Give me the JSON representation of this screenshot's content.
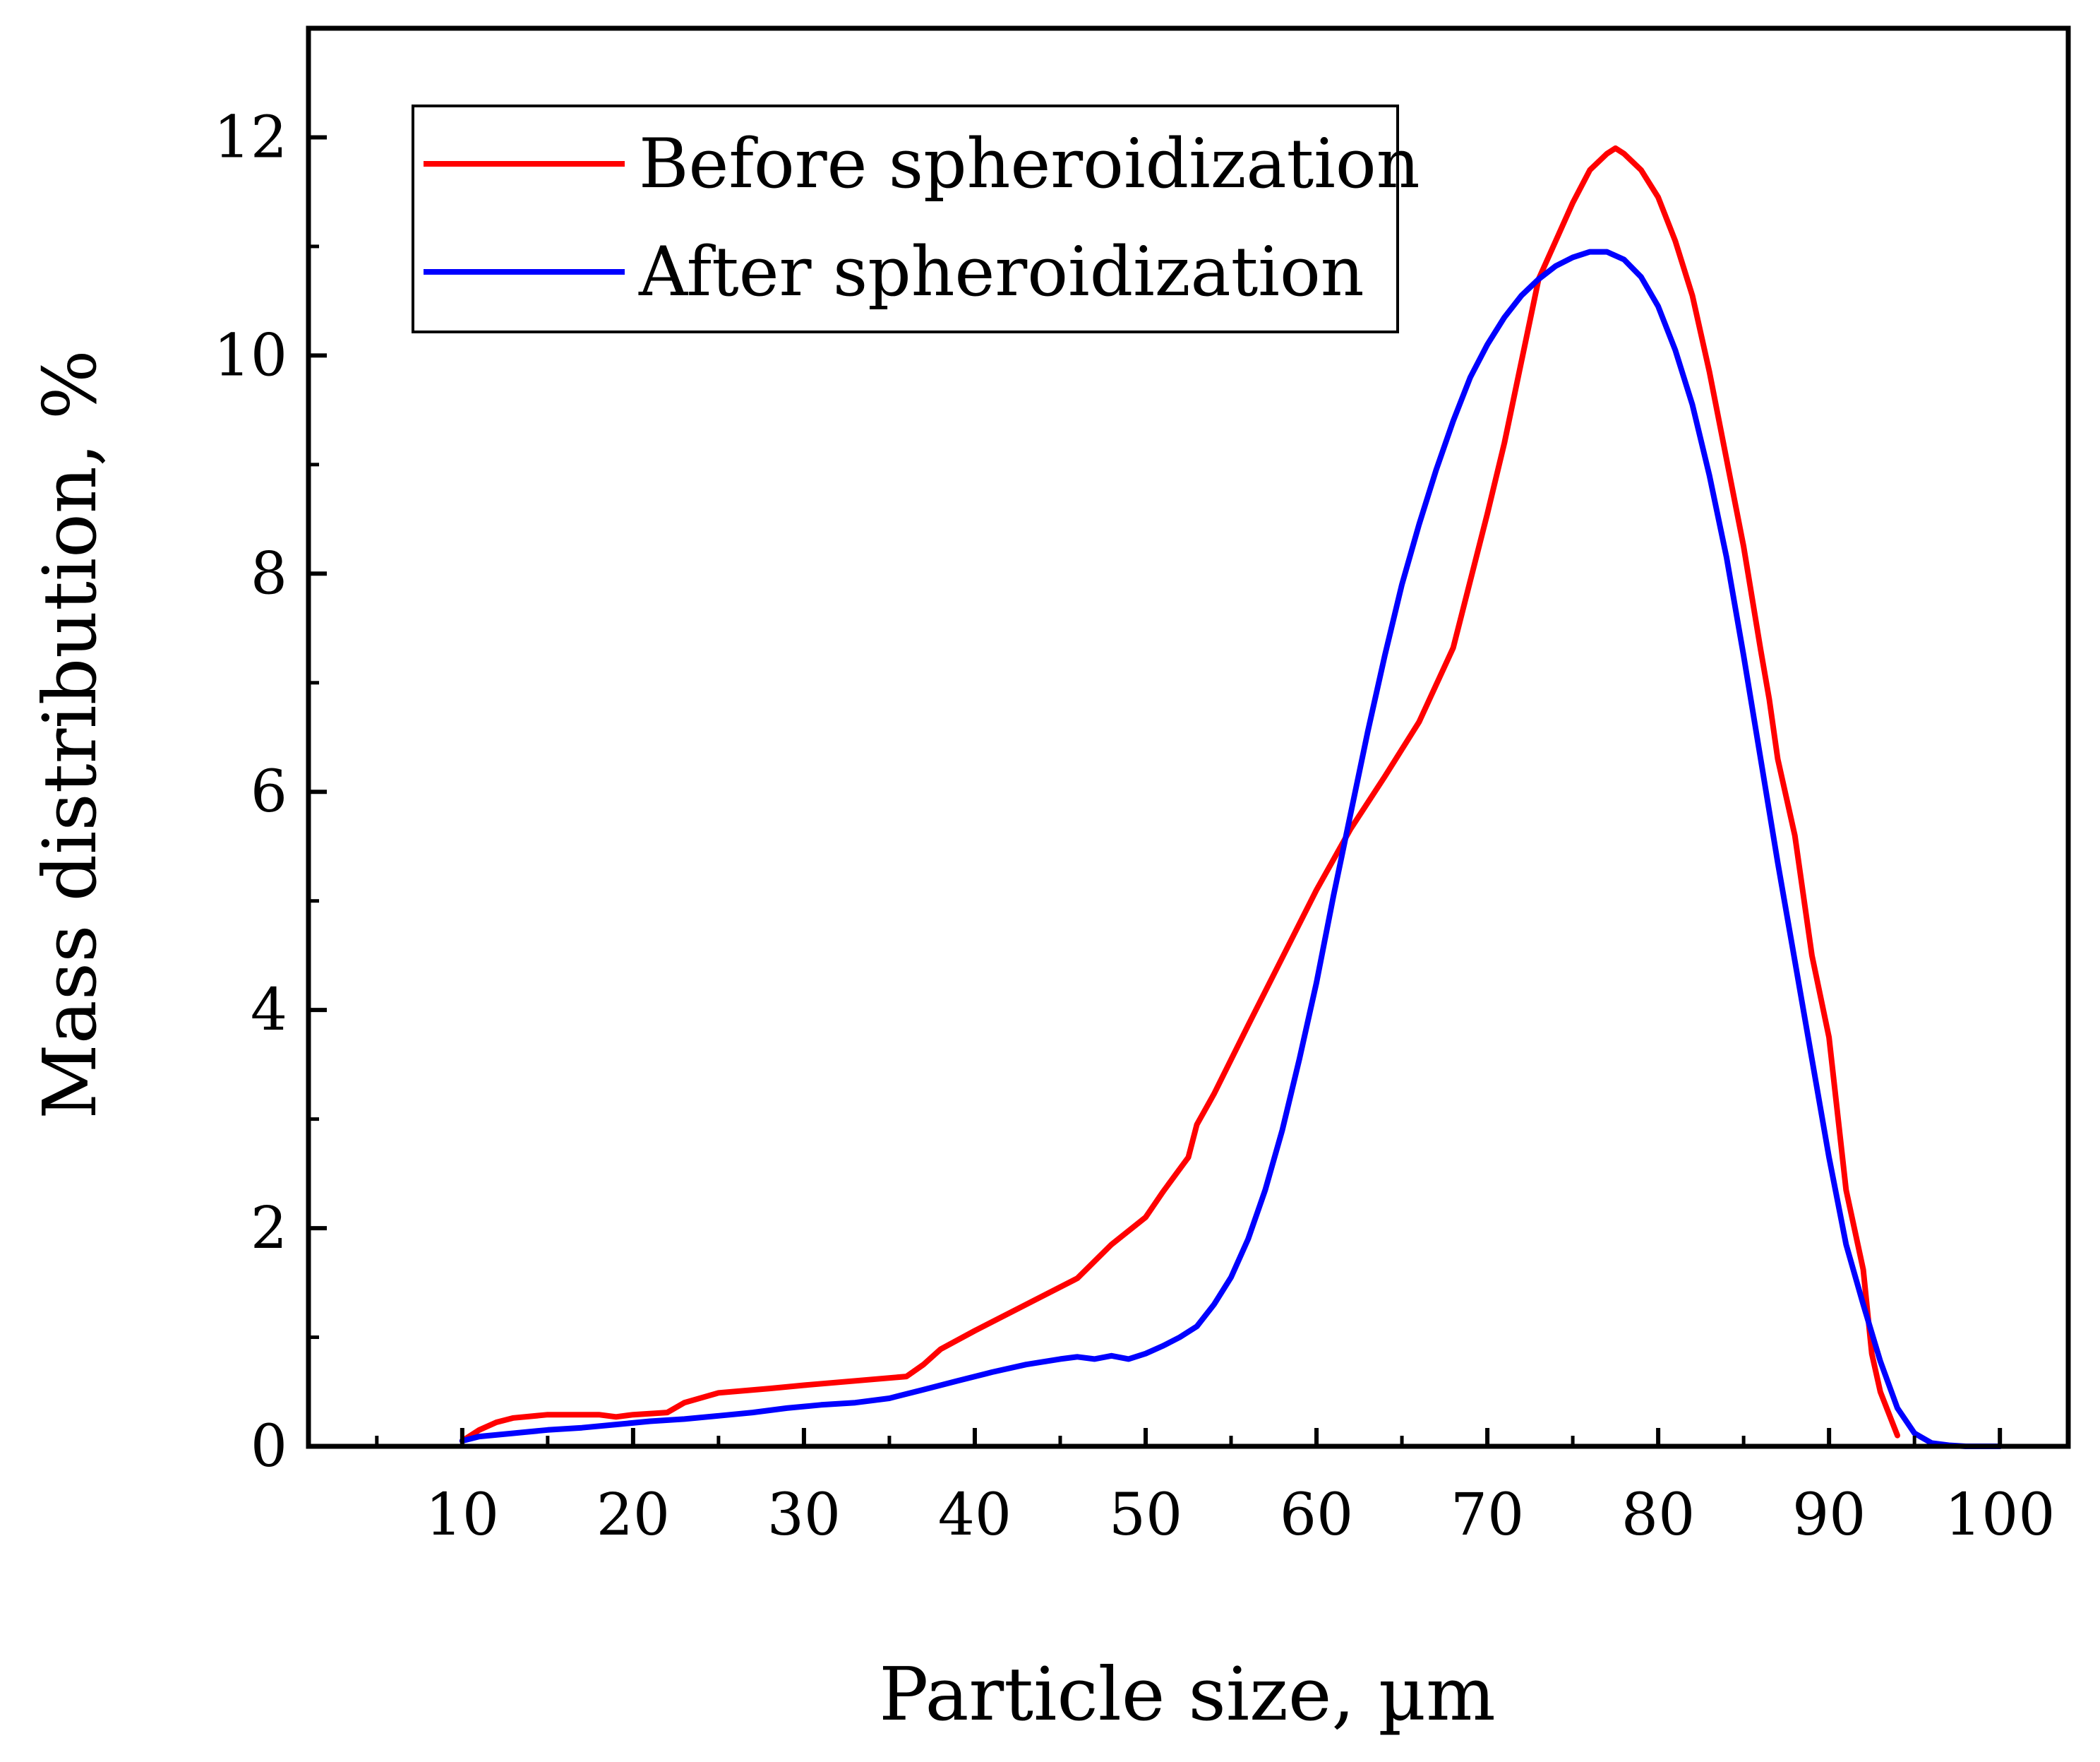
{
  "chart_data": {
    "type": "line",
    "xlabel": "Particle size, µm",
    "ylabel": "Mass distribution, %",
    "xlim": [
      1,
      104
    ],
    "ylim": [
      0,
      13
    ],
    "xticks": [
      10,
      20,
      30,
      40,
      50,
      60,
      70,
      80,
      90,
      100
    ],
    "yticks": [
      0,
      2,
      4,
      6,
      8,
      10,
      12
    ],
    "legend_position": "top-left",
    "series": [
      {
        "name": "Before spheroidization",
        "color": "#ff0000",
        "x": [
          10,
          11,
          12,
          13,
          15,
          18,
          19,
          20,
          22,
          23,
          25,
          28,
          30,
          33,
          36,
          37,
          38,
          40,
          42,
          44,
          46,
          48,
          50,
          51,
          52.5,
          53,
          54,
          56,
          58,
          60,
          62,
          64,
          66,
          68,
          70,
          71,
          72,
          73,
          74,
          75,
          76,
          77,
          77.5,
          78,
          79,
          80,
          81,
          82,
          83,
          84,
          85,
          86,
          86.5,
          87,
          88,
          89,
          90,
          91,
          92,
          92.5,
          93,
          94
        ],
        "y": [
          0.05,
          0.15,
          0.22,
          0.26,
          0.29,
          0.29,
          0.27,
          0.29,
          0.31,
          0.4,
          0.49,
          0.53,
          0.56,
          0.6,
          0.64,
          0.75,
          0.89,
          1.06,
          1.22,
          1.38,
          1.54,
          1.85,
          2.1,
          2.33,
          2.65,
          2.95,
          3.23,
          3.86,
          4.48,
          5.1,
          5.66,
          6.14,
          6.64,
          7.32,
          8.55,
          9.2,
          9.95,
          10.7,
          11.05,
          11.4,
          11.7,
          11.85,
          11.9,
          11.85,
          11.7,
          11.45,
          11.05,
          10.55,
          9.85,
          9.05,
          8.25,
          7.3,
          6.85,
          6.3,
          5.6,
          4.5,
          3.75,
          2.35,
          1.62,
          0.85,
          0.5,
          0.1
        ]
      },
      {
        "name": "After spheroidization",
        "color": "#0000ff",
        "x": [
          10,
          11,
          13,
          15,
          17,
          19,
          21,
          23,
          25,
          27,
          29,
          31,
          33,
          35,
          37,
          39,
          41,
          43,
          45,
          46,
          47,
          48,
          49,
          50,
          51,
          52,
          53,
          54,
          55,
          56,
          57,
          58,
          59,
          60,
          61,
          62,
          63,
          64,
          65,
          66,
          67,
          68,
          69,
          70,
          71,
          72,
          73,
          74,
          75,
          76,
          77,
          78,
          79,
          80,
          81,
          82,
          83,
          84,
          85,
          86,
          87,
          88,
          89,
          90,
          91,
          92,
          93,
          94,
          95,
          96,
          97,
          98,
          99,
          100
        ],
        "y": [
          0.05,
          0.09,
          0.12,
          0.15,
          0.17,
          0.2,
          0.23,
          0.25,
          0.28,
          0.31,
          0.35,
          0.38,
          0.4,
          0.44,
          0.52,
          0.6,
          0.68,
          0.75,
          0.8,
          0.82,
          0.8,
          0.83,
          0.8,
          0.85,
          0.92,
          1.0,
          1.1,
          1.3,
          1.55,
          1.9,
          2.35,
          2.9,
          3.55,
          4.25,
          5.05,
          5.8,
          6.55,
          7.25,
          7.9,
          8.45,
          8.95,
          9.4,
          9.8,
          10.1,
          10.35,
          10.55,
          10.7,
          10.82,
          10.9,
          10.95,
          10.95,
          10.88,
          10.72,
          10.45,
          10.05,
          9.55,
          8.9,
          8.15,
          7.25,
          6.3,
          5.35,
          4.45,
          3.55,
          2.65,
          1.85,
          1.3,
          0.78,
          0.35,
          0.12,
          0.03,
          0.01,
          0.0,
          0.0,
          0.0
        ]
      }
    ]
  }
}
